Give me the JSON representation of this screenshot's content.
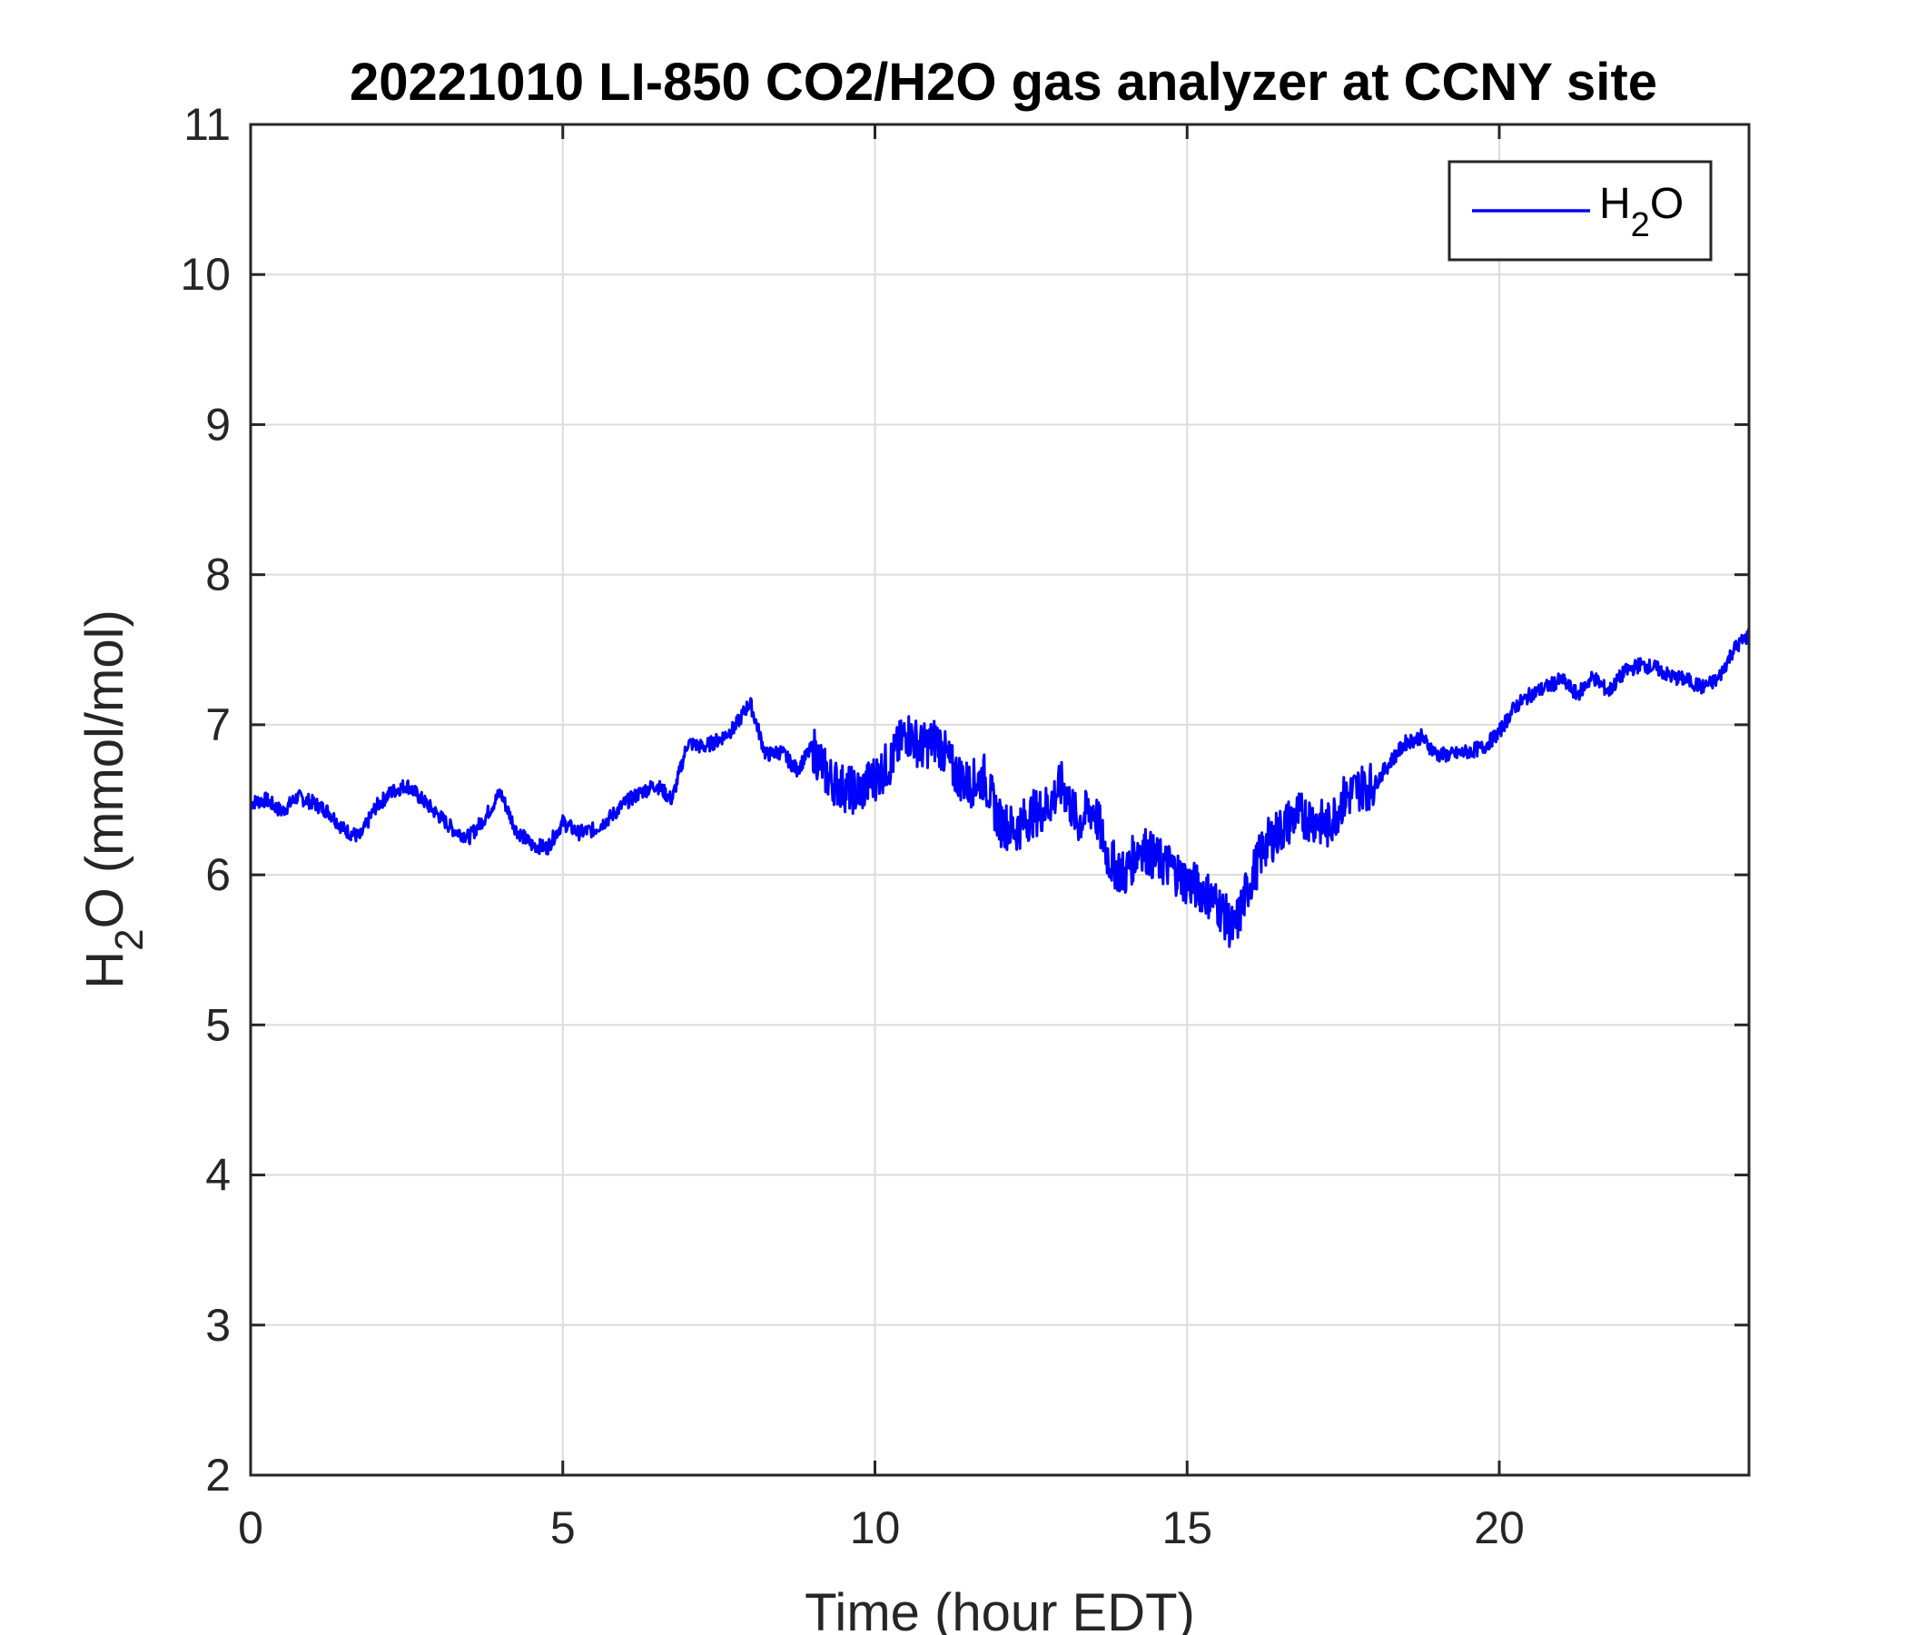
{
  "chart_data": {
    "type": "line",
    "title": "20221010 LI-850 CO2/H2O gas analyzer at CCNY site",
    "xlabel": "Time (hour EDT)",
    "ylabel": {
      "main": "H",
      "sub": "2",
      "rest": "O (mmol/mol)"
    },
    "xlim": [
      0,
      24
    ],
    "ylim": [
      2,
      11
    ],
    "xticks": [
      0,
      5,
      10,
      15,
      20
    ],
    "yticks": [
      2,
      3,
      4,
      5,
      6,
      7,
      8,
      9,
      10,
      11
    ],
    "grid": true,
    "legend": {
      "placement": "top-right",
      "entries": [
        {
          "main": "H",
          "sub": "2",
          "rest": "O"
        }
      ]
    },
    "series": [
      {
        "color": "#0000ff",
        "x": [
          0,
          0.25,
          0.5,
          0.75,
          1,
          1.25,
          1.5,
          1.75,
          2,
          2.25,
          2.5,
          2.75,
          3,
          3.25,
          3.5,
          3.75,
          4,
          4.25,
          4.5,
          4.75,
          5,
          5.25,
          5.5,
          5.75,
          6,
          6.25,
          6.5,
          6.75,
          7,
          7.25,
          7.5,
          7.75,
          8,
          8.25,
          8.5,
          8.75,
          9,
          9.25,
          9.5,
          9.75,
          10,
          10.25,
          10.5,
          10.75,
          11,
          11.25,
          11.5,
          11.75,
          12,
          12.25,
          12.5,
          12.75,
          13,
          13.25,
          13.5,
          13.75,
          14,
          14.25,
          14.5,
          14.75,
          15,
          15.25,
          15.5,
          15.75,
          16,
          16.25,
          16.5,
          16.75,
          17,
          17.25,
          17.5,
          17.75,
          18,
          18.25,
          18.5,
          18.75,
          19,
          19.25,
          19.5,
          19.75,
          20,
          20.25,
          20.5,
          20.75,
          21,
          21.25,
          21.5,
          21.75,
          22,
          22.25,
          22.5,
          22.75,
          23,
          23.25,
          23.5,
          23.75,
          24
        ],
        "values": [
          6.48,
          6.5,
          6.42,
          6.52,
          6.48,
          6.42,
          6.3,
          6.25,
          6.45,
          6.55,
          6.6,
          6.5,
          6.4,
          6.3,
          6.25,
          6.38,
          6.55,
          6.3,
          6.2,
          6.18,
          6.35,
          6.28,
          6.3,
          6.38,
          6.48,
          6.55,
          6.6,
          6.5,
          6.88,
          6.85,
          6.9,
          6.98,
          7.15,
          6.8,
          6.82,
          6.7,
          6.85,
          6.65,
          6.58,
          6.55,
          6.65,
          6.75,
          6.95,
          6.85,
          6.9,
          6.7,
          6.6,
          6.65,
          6.35,
          6.3,
          6.4,
          6.45,
          6.6,
          6.35,
          6.45,
          6.1,
          6.0,
          6.2,
          6.1,
          6.05,
          5.95,
          5.9,
          5.8,
          5.62,
          5.95,
          6.2,
          6.3,
          6.4,
          6.38,
          6.32,
          6.5,
          6.58,
          6.6,
          6.75,
          6.88,
          6.92,
          6.8,
          6.8,
          6.82,
          6.85,
          6.95,
          7.12,
          7.2,
          7.25,
          7.3,
          7.2,
          7.32,
          7.22,
          7.35,
          7.4,
          7.38,
          7.32,
          7.3,
          7.25,
          7.3,
          7.5,
          7.6
        ]
      }
    ]
  }
}
